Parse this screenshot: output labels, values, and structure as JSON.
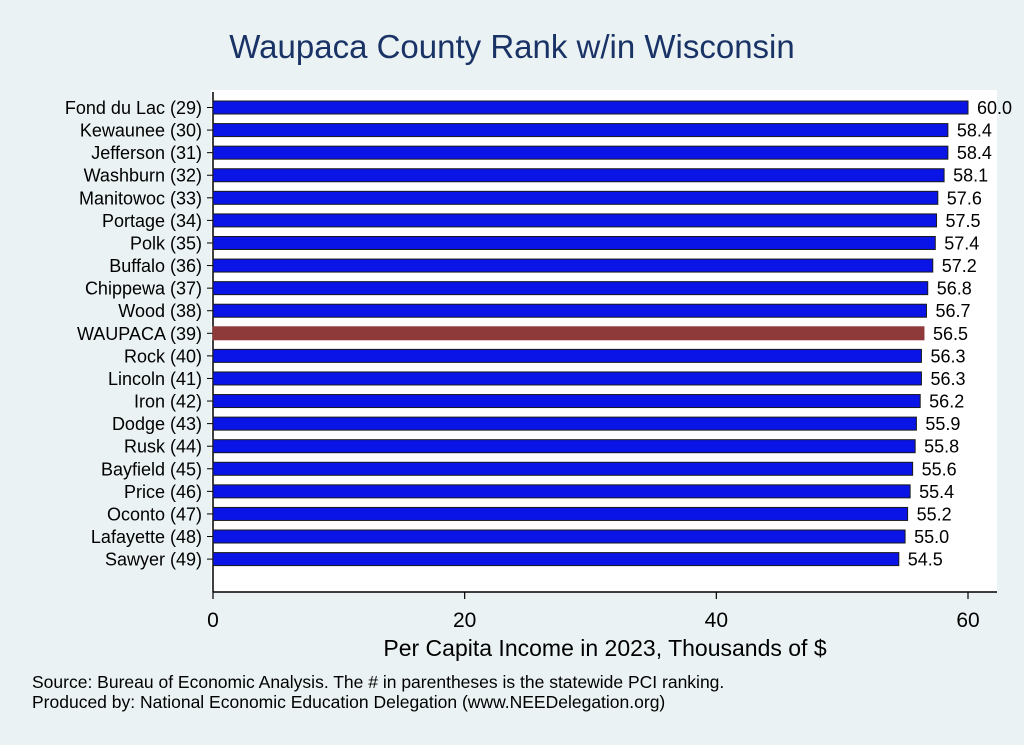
{
  "chart_data": {
    "type": "bar",
    "orientation": "horizontal",
    "title": "Waupaca County Rank w/in Wisconsin",
    "xlabel": "Per Capita Income in 2023, Thousands of $",
    "ylabel": "",
    "xlim": [
      0,
      62.4
    ],
    "xticks": [
      "0",
      "20",
      "40",
      "60"
    ],
    "grid": false,
    "categories": [
      "Fond du Lac (29)",
      "Kewaunee (30)",
      "Jefferson (31)",
      "Washburn (32)",
      "Manitowoc (33)",
      "Portage (34)",
      "Polk (35)",
      "Buffalo (36)",
      "Chippewa (37)",
      "Wood (38)",
      "WAUPACA (39)",
      "Rock (40)",
      "Lincoln (41)",
      "Iron (42)",
      "Dodge (43)",
      "Rusk (44)",
      "Bayfield (45)",
      "Price (46)",
      "Oconto (47)",
      "Lafayette (48)",
      "Sawyer (49)"
    ],
    "values": [
      60.0,
      58.4,
      58.4,
      58.1,
      57.6,
      57.5,
      57.4,
      57.2,
      56.8,
      56.7,
      56.5,
      56.3,
      56.3,
      56.2,
      55.9,
      55.8,
      55.6,
      55.4,
      55.2,
      55.0,
      54.5
    ],
    "value_labels": [
      "60.0",
      "58.4",
      "58.4",
      "58.1",
      "57.6",
      "57.5",
      "57.4",
      "57.2",
      "56.8",
      "56.7",
      "56.5",
      "56.3",
      "56.3",
      "56.2",
      "55.9",
      "55.8",
      "55.6",
      "55.4",
      "55.2",
      "55.0",
      "54.5"
    ],
    "highlight_index": 10,
    "colors": {
      "bar": "#0a14e6",
      "bar_edge": "#1a1a1a",
      "highlight": "#8f3a3a",
      "title": "#1a3366"
    }
  },
  "footer": {
    "source": "Source: Bureau of Economic Analysis. The # in parentheses is the statewide PCI ranking.",
    "produced_by": "Produced by: National Economic Education Delegation (www.NEEDelegation.org)"
  }
}
